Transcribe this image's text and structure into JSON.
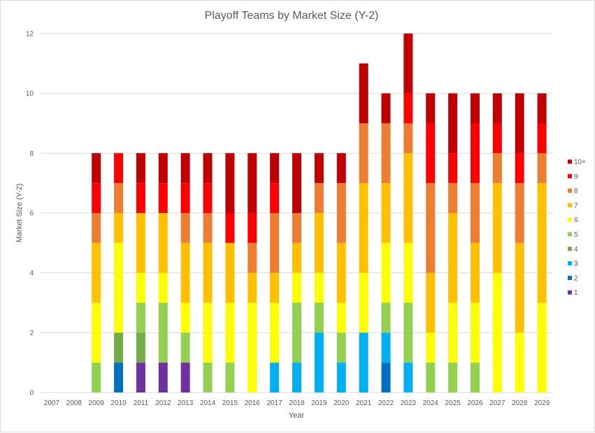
{
  "chart_data": {
    "type": "bar",
    "stacked": true,
    "title": "Playoff Teams by Market Size (Y-2)",
    "xlabel": "Year",
    "ylabel": "Market Size (Y-2)",
    "ylim": [
      0,
      12
    ],
    "yticks": [
      0,
      2,
      4,
      6,
      8,
      10,
      12
    ],
    "grid": true,
    "legend_position": "right",
    "categories": [
      "2007",
      "2008",
      "2009",
      "2010",
      "2011",
      "2012",
      "2013",
      "2014",
      "2015",
      "2016",
      "2017",
      "2018",
      "2019",
      "2020",
      "2021",
      "2022",
      "2023",
      "2024",
      "2025",
      "2026",
      "2027",
      "2028",
      "2029"
    ],
    "series": [
      {
        "name": "1",
        "color": "#7030a0",
        "values": [
          0,
          0,
          0,
          0,
          1,
          1,
          1,
          0,
          0,
          0,
          0,
          0,
          0,
          0,
          0,
          0,
          0,
          0,
          0,
          0,
          0,
          0,
          0
        ]
      },
      {
        "name": "2",
        "color": "#0070c0",
        "values": [
          0,
          0,
          0,
          1,
          0,
          0,
          0,
          0,
          0,
          0,
          0,
          0,
          0,
          0,
          0,
          1,
          0,
          0,
          0,
          0,
          0,
          0,
          0
        ]
      },
      {
        "name": "3",
        "color": "#00b0f0",
        "values": [
          0,
          0,
          0,
          0,
          0,
          0,
          0,
          0,
          0,
          0,
          1,
          1,
          2,
          1,
          2,
          1,
          1,
          0,
          0,
          0,
          0,
          0,
          0
        ]
      },
      {
        "name": "4",
        "color": "#70ad47",
        "values": [
          0,
          0,
          0,
          1,
          1,
          0,
          0,
          0,
          0,
          0,
          0,
          0,
          0,
          0,
          0,
          0,
          0,
          0,
          0,
          0,
          0,
          0,
          0
        ]
      },
      {
        "name": "5",
        "color": "#92d050",
        "values": [
          0,
          0,
          1,
          0,
          1,
          2,
          1,
          1,
          1,
          0,
          0,
          2,
          1,
          1,
          0,
          1,
          2,
          1,
          1,
          1,
          0,
          0,
          0
        ]
      },
      {
        "name": "6",
        "color": "#ffff00",
        "values": [
          0,
          0,
          2,
          3,
          1,
          1,
          1,
          2,
          2,
          3,
          2,
          1,
          1,
          1,
          2,
          2,
          2,
          1,
          2,
          2,
          4,
          2,
          3
        ]
      },
      {
        "name": "7",
        "color": "#ffc000",
        "values": [
          0,
          0,
          2,
          1,
          2,
          2,
          2,
          2,
          2,
          1,
          1,
          1,
          2,
          2,
          3,
          2,
          3,
          2,
          3,
          2,
          3,
          3,
          4
        ]
      },
      {
        "name": "8",
        "color": "#ed7d31",
        "values": [
          0,
          0,
          1,
          1,
          0,
          0,
          1,
          1,
          0,
          1,
          2,
          1,
          1,
          2,
          2,
          2,
          1,
          3,
          1,
          2,
          1,
          2,
          1
        ]
      },
      {
        "name": "9",
        "color": "#ff0000",
        "values": [
          0,
          0,
          1,
          1,
          1,
          1,
          1,
          1,
          1,
          1,
          1,
          0,
          0,
          0,
          0,
          0,
          1,
          2,
          1,
          2,
          1,
          1,
          1
        ]
      },
      {
        "name": "10+",
        "color": "#c00000",
        "values": [
          0,
          0,
          1,
          0,
          1,
          1,
          1,
          1,
          2,
          2,
          1,
          2,
          1,
          1,
          2,
          1,
          2,
          1,
          2,
          1,
          1,
          2,
          1
        ]
      }
    ]
  }
}
